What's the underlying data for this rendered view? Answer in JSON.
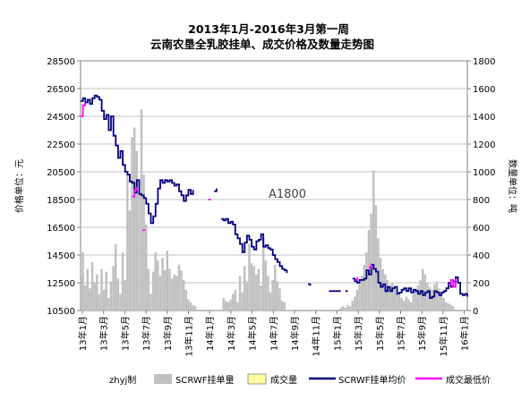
{
  "chart_data": {
    "type": "line",
    "title": "2013年1月-2016年3月第一周",
    "subtitle": "云南农垦全乳胶挂单、成交价格及数量走势图",
    "ylabel_left": "价格单位：元",
    "ylabel_right": "数量单位：吨",
    "annotation": "A1800",
    "credit": "zhyj制",
    "ylim_left": [
      10500,
      28500
    ],
    "ylim_right": [
      0,
      1800
    ],
    "yticks_left": [
      "28500",
      "26500",
      "24500",
      "22500",
      "20500",
      "18500",
      "16500",
      "14500",
      "12500",
      "10500"
    ],
    "yticks_right": [
      "1800",
      "1600",
      "1400",
      "1200",
      "1000",
      "800",
      "600",
      "400",
      "200",
      "0"
    ],
    "xticks": [
      "13年1月",
      "13年3月",
      "13年5月",
      "13年7月",
      "13年9月",
      "13年11月",
      "14年1月",
      "14年3月",
      "14年5月",
      "14年7月",
      "14年9月",
      "14年11月",
      "15年1月",
      "15年3月",
      "15年5月",
      "15年7月",
      "15年9月",
      "15年11月",
      "16年1月"
    ],
    "x_range_weeks": [
      0,
      165
    ],
    "legend": [
      "SCRWF挂单量",
      "成交量",
      "SCRWF挂单均价",
      "成交最低价"
    ],
    "colors": {
      "listing_volume": "#c0c0c0",
      "traded_volume": "#ffffa0",
      "avg_price": "#000080",
      "min_price": "#ff00ff",
      "grid": "#c0c0c0"
    },
    "series": [
      {
        "name": "SCRWF挂单均价",
        "axis": "left",
        "segments": [
          [
            [
              0,
              25600
            ],
            [
              1,
              25800
            ],
            [
              2,
              25500
            ],
            [
              3,
              25700
            ],
            [
              4,
              25400
            ],
            [
              5,
              25800
            ],
            [
              6,
              26000
            ],
            [
              7,
              25900
            ],
            [
              8,
              25700
            ],
            [
              9,
              24900
            ],
            [
              10,
              24300
            ],
            [
              11,
              24600
            ],
            [
              12,
              23500
            ],
            [
              13,
              24500
            ],
            [
              14,
              23100
            ],
            [
              15,
              22400
            ],
            [
              16,
              21500
            ],
            [
              17,
              22000
            ],
            [
              18,
              21000
            ],
            [
              19,
              20500
            ],
            [
              20,
              20300
            ],
            [
              21,
              19800
            ],
            [
              22,
              19700
            ],
            [
              23,
              19000
            ],
            [
              24,
              19900
            ],
            [
              25,
              18900
            ],
            [
              26,
              18800
            ],
            [
              27,
              18600
            ],
            [
              28,
              18200
            ],
            [
              29,
              17500
            ],
            [
              30,
              16800
            ],
            [
              31,
              17300
            ],
            [
              32,
              18200
            ],
            [
              33,
              19300
            ],
            [
              34,
              19900
            ],
            [
              35,
              19700
            ],
            [
              36,
              19900
            ],
            [
              37,
              19800
            ],
            [
              38,
              19900
            ],
            [
              39,
              19700
            ],
            [
              40,
              19500
            ],
            [
              41,
              19600
            ],
            [
              42,
              19100
            ],
            [
              43,
              18800
            ],
            [
              44,
              18400
            ],
            [
              45,
              18800
            ],
            [
              46,
              19200
            ],
            [
              47,
              18900
            ],
            [
              48,
              19200
            ]
          ],
          [
            [
              57,
              19100
            ],
            [
              58,
              19300
            ]
          ],
          [
            [
              60,
              17100
            ],
            [
              61,
              17000
            ],
            [
              62,
              17100
            ],
            [
              63,
              16800
            ],
            [
              64,
              16900
            ],
            [
              65,
              16700
            ],
            [
              66,
              16000
            ],
            [
              67,
              15700
            ],
            [
              68,
              15300
            ],
            [
              69,
              14700
            ],
            [
              70,
              15400
            ],
            [
              71,
              15900
            ],
            [
              72,
              15600
            ],
            [
              73,
              15100
            ],
            [
              74,
              14900
            ],
            [
              75,
              15500
            ],
            [
              76,
              15600
            ],
            [
              77,
              16000
            ],
            [
              78,
              15100
            ],
            [
              79,
              15200
            ],
            [
              80,
              15000
            ],
            [
              81,
              14900
            ],
            [
              82,
              14500
            ],
            [
              83,
              14200
            ],
            [
              84,
              14000
            ],
            [
              85,
              13700
            ],
            [
              86,
              13500
            ],
            [
              87,
              13400
            ],
            [
              88,
              13200
            ]
          ],
          [
            [
              97,
              12400
            ],
            [
              98,
              12300
            ]
          ],
          [
            [
              106,
              11900
            ],
            [
              107,
              11900
            ],
            [
              108,
              11900
            ],
            [
              109,
              11900
            ],
            [
              110,
              11900
            ],
            [
              111,
              11900
            ]
          ],
          [
            [
              113,
              11900
            ],
            [
              114,
              11900
            ]
          ],
          [
            [
              116,
              12800
            ],
            [
              117,
              12600
            ],
            [
              118,
              12500
            ],
            [
              119,
              12700
            ],
            [
              120,
              12700
            ],
            [
              121,
              12800
            ],
            [
              122,
              13400
            ],
            [
              123,
              13100
            ],
            [
              124,
              13800
            ],
            [
              125,
              13500
            ],
            [
              126,
              13300
            ],
            [
              127,
              12500
            ],
            [
              128,
              12200
            ],
            [
              129,
              12400
            ],
            [
              130,
              11900
            ],
            [
              131,
              12200
            ],
            [
              132,
              11900
            ],
            [
              133,
              12100
            ],
            [
              134,
              12200
            ],
            [
              135,
              11700
            ],
            [
              136,
              11800
            ],
            [
              137,
              12000
            ],
            [
              138,
              12100
            ],
            [
              139,
              11900
            ],
            [
              140,
              12100
            ],
            [
              141,
              11800
            ],
            [
              142,
              12000
            ],
            [
              143,
              11900
            ],
            [
              144,
              11700
            ],
            [
              145,
              11900
            ],
            [
              146,
              11600
            ],
            [
              147,
              11800
            ],
            [
              148,
              11900
            ],
            [
              149,
              11400
            ],
            [
              150,
              11500
            ],
            [
              151,
              11900
            ],
            [
              152,
              11800
            ],
            [
              153,
              11600
            ],
            [
              154,
              11800
            ],
            [
              155,
              11900
            ],
            [
              156,
              12100
            ],
            [
              157,
              12500
            ],
            [
              158,
              12200
            ],
            [
              159,
              12600
            ],
            [
              160,
              12900
            ],
            [
              161,
              12500
            ],
            [
              162,
              11700
            ],
            [
              163,
              11600
            ],
            [
              164,
              11700
            ],
            [
              165,
              11500
            ]
          ]
        ]
      },
      {
        "name": "成交最低价",
        "axis": "left",
        "segments": [
          [
            [
              0,
              24500
            ],
            [
              1,
              25300
            ],
            [
              2,
              25500
            ]
          ],
          [
            [
              22,
              18700
            ],
            [
              23,
              19200
            ],
            [
              24,
              19400
            ]
          ],
          [
            [
              27,
              16300
            ]
          ],
          [
            [
              55,
              18500
            ]
          ],
          [
            [
              117,
              12700
            ],
            [
              118,
              12900
            ]
          ],
          [
            [
              123,
              13600
            ],
            [
              124,
              13900
            ]
          ],
          [
            [
              157,
              12400
            ],
            [
              158,
              12700
            ],
            [
              159,
              12200
            ],
            [
              160,
              12800
            ]
          ]
        ]
      },
      {
        "name": "SCRWF挂单量",
        "axis": "right",
        "values": [
          250,
          420,
          180,
          300,
          160,
          350,
          200,
          260,
          120,
          300,
          150,
          280,
          90,
          210,
          320,
          480,
          230,
          120,
          420,
          220,
          980,
          720,
          1250,
          1320,
          1150,
          850,
          1450,
          980,
          620,
          300,
          120,
          280,
          420,
          360,
          250,
          380,
          290,
          430,
          300,
          230,
          260,
          250,
          330,
          290,
          220,
          150,
          80,
          60,
          40,
          30,
          0,
          0,
          0,
          0,
          0,
          0,
          0,
          0,
          0,
          0,
          0,
          90,
          70,
          60,
          80,
          120,
          150,
          60,
          250,
          130,
          320,
          210,
          480,
          340,
          320,
          260,
          300,
          180,
          520,
          360,
          250,
          130,
          220,
          330,
          210,
          160,
          70,
          60,
          0,
          0,
          0,
          0,
          0,
          0,
          0,
          0,
          0,
          0,
          0,
          0,
          0,
          0,
          0,
          0,
          0,
          0,
          0,
          0,
          0,
          0,
          0,
          20,
          30,
          20,
          40,
          30,
          70,
          100,
          150,
          190,
          250,
          330,
          420,
          580,
          700,
          1010,
          760,
          520,
          380,
          300,
          260,
          220,
          180,
          200,
          150,
          120,
          110,
          90,
          70,
          100,
          80,
          60,
          120,
          150,
          180,
          220,
          300,
          260,
          200,
          170,
          150,
          190,
          210,
          160,
          120,
          90,
          60,
          50,
          40,
          30
        ]
      },
      {
        "name": "成交量",
        "axis": "right",
        "values": []
      }
    ]
  }
}
